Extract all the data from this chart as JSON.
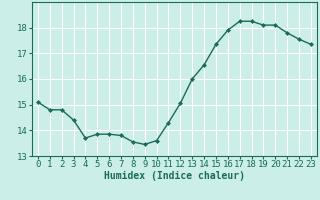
{
  "x": [
    0,
    1,
    2,
    3,
    4,
    5,
    6,
    7,
    8,
    9,
    10,
    11,
    12,
    13,
    14,
    15,
    16,
    17,
    18,
    19,
    20,
    21,
    22,
    23
  ],
  "y": [
    15.1,
    14.8,
    14.8,
    14.4,
    13.7,
    13.85,
    13.85,
    13.8,
    13.55,
    13.45,
    13.6,
    14.3,
    15.05,
    16.0,
    16.55,
    17.35,
    17.9,
    18.25,
    18.25,
    18.1,
    18.1,
    17.8,
    17.55,
    17.35
  ],
  "line_color": "#1a6b5a",
  "marker": "D",
  "marker_size": 2.0,
  "line_width": 1.0,
  "bg_color": "#cceee8",
  "grid_color": "#ffffff",
  "xlabel": "Humidex (Indice chaleur)",
  "xlabel_fontsize": 7,
  "tick_fontsize": 6.5,
  "ylim": [
    13,
    19
  ],
  "xlim": [
    -0.5,
    23.5
  ],
  "yticks": [
    13,
    14,
    15,
    16,
    17,
    18
  ],
  "xticks": [
    0,
    1,
    2,
    3,
    4,
    5,
    6,
    7,
    8,
    9,
    10,
    11,
    12,
    13,
    14,
    15,
    16,
    17,
    18,
    19,
    20,
    21,
    22,
    23
  ],
  "tick_color": "#1a6b5a",
  "spine_color": "#1a6b5a"
}
